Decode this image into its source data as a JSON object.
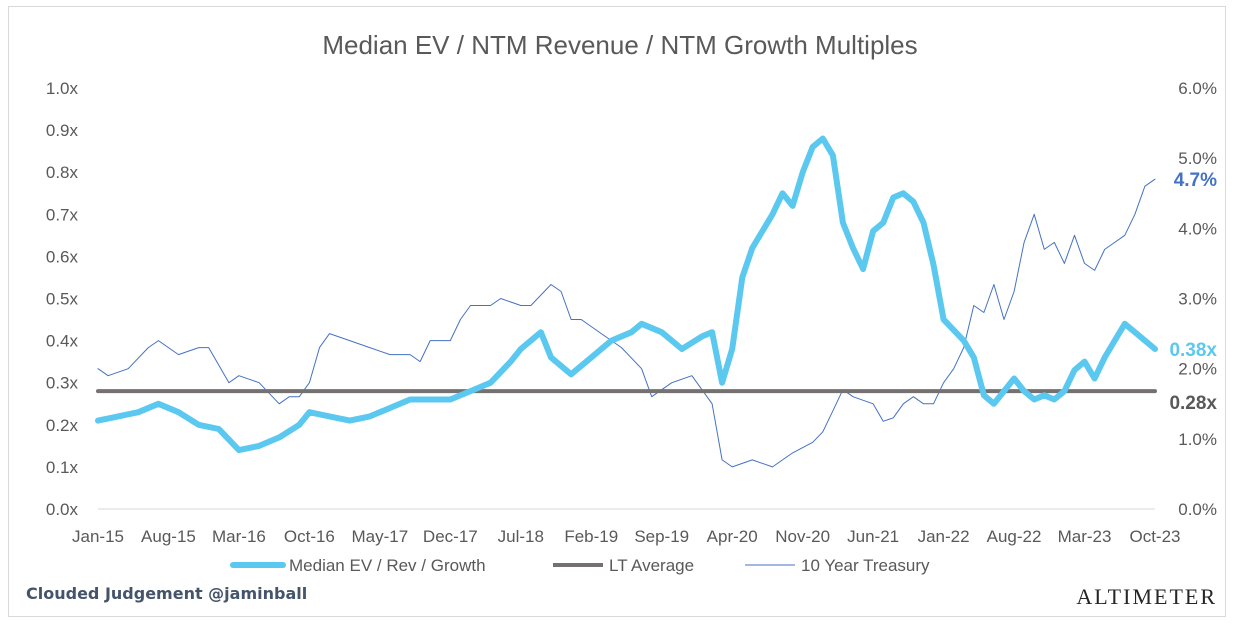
{
  "chart_data": {
    "type": "line",
    "title": "Median EV / NTM Revenue / NTM Growth Multiples",
    "x_tick_labels": [
      "Jan-15",
      "Aug-15",
      "Mar-16",
      "Oct-16",
      "May-17",
      "Dec-17",
      "Jul-18",
      "Feb-19",
      "Sep-19",
      "Apr-20",
      "Nov-20",
      "Jun-21",
      "Jan-22",
      "Aug-22",
      "Mar-23",
      "Oct-23"
    ],
    "y_left": {
      "ticks": [
        "0.0x",
        "0.1x",
        "0.2x",
        "0.3x",
        "0.4x",
        "0.5x",
        "0.6x",
        "0.7x",
        "0.8x",
        "0.9x",
        "1.0x"
      ],
      "range": [
        0,
        1.0
      ]
    },
    "y_right": {
      "ticks": [
        "0.0%",
        "1.0%",
        "2.0%",
        "3.0%",
        "4.0%",
        "5.0%",
        "6.0%"
      ],
      "range": [
        0,
        6.0
      ]
    },
    "grid": false,
    "legend_position": "bottom",
    "series": [
      {
        "name": "Median EV / Rev / Growth",
        "axis": "left",
        "color": "#5bc8f0",
        "end_label": "0.38x",
        "points": [
          [
            "Jan-15",
            0.21
          ],
          [
            "Mar-15",
            0.22
          ],
          [
            "May-15",
            0.23
          ],
          [
            "Jul-15",
            0.25
          ],
          [
            "Sep-15",
            0.23
          ],
          [
            "Nov-15",
            0.2
          ],
          [
            "Jan-16",
            0.19
          ],
          [
            "Mar-16",
            0.14
          ],
          [
            "May-16",
            0.15
          ],
          [
            "Jul-16",
            0.17
          ],
          [
            "Sep-16",
            0.2
          ],
          [
            "Oct-16",
            0.23
          ],
          [
            "Dec-16",
            0.22
          ],
          [
            "Feb-17",
            0.21
          ],
          [
            "Apr-17",
            0.22
          ],
          [
            "Jun-17",
            0.24
          ],
          [
            "Aug-17",
            0.26
          ],
          [
            "Oct-17",
            0.26
          ],
          [
            "Dec-17",
            0.26
          ],
          [
            "Feb-18",
            0.28
          ],
          [
            "Apr-18",
            0.3
          ],
          [
            "Jun-18",
            0.35
          ],
          [
            "Jul-18",
            0.38
          ],
          [
            "Aug-18",
            0.4
          ],
          [
            "Sep-18",
            0.42
          ],
          [
            "Oct-18",
            0.36
          ],
          [
            "Dec-18",
            0.32
          ],
          [
            "Feb-19",
            0.36
          ],
          [
            "Apr-19",
            0.4
          ],
          [
            "Jun-19",
            0.42
          ],
          [
            "Jul-19",
            0.44
          ],
          [
            "Sep-19",
            0.42
          ],
          [
            "Nov-19",
            0.38
          ],
          [
            "Jan-20",
            0.41
          ],
          [
            "Feb-20",
            0.42
          ],
          [
            "Mar-20",
            0.3
          ],
          [
            "Apr-20",
            0.38
          ],
          [
            "May-20",
            0.55
          ],
          [
            "Jun-20",
            0.62
          ],
          [
            "Aug-20",
            0.7
          ],
          [
            "Sep-20",
            0.75
          ],
          [
            "Oct-20",
            0.72
          ],
          [
            "Nov-20",
            0.8
          ],
          [
            "Dec-20",
            0.86
          ],
          [
            "Jan-21",
            0.88
          ],
          [
            "Feb-21",
            0.84
          ],
          [
            "Mar-21",
            0.68
          ],
          [
            "Apr-21",
            0.62
          ],
          [
            "May-21",
            0.57
          ],
          [
            "Jun-21",
            0.66
          ],
          [
            "Jul-21",
            0.68
          ],
          [
            "Aug-21",
            0.74
          ],
          [
            "Sep-21",
            0.75
          ],
          [
            "Oct-21",
            0.73
          ],
          [
            "Nov-21",
            0.68
          ],
          [
            "Dec-21",
            0.58
          ],
          [
            "Jan-22",
            0.45
          ],
          [
            "Mar-22",
            0.4
          ],
          [
            "Apr-22",
            0.36
          ],
          [
            "May-22",
            0.27
          ],
          [
            "Jun-22",
            0.25
          ],
          [
            "Jul-22",
            0.28
          ],
          [
            "Aug-22",
            0.31
          ],
          [
            "Sep-22",
            0.28
          ],
          [
            "Oct-22",
            0.26
          ],
          [
            "Nov-22",
            0.27
          ],
          [
            "Dec-22",
            0.26
          ],
          [
            "Jan-23",
            0.28
          ],
          [
            "Feb-23",
            0.33
          ],
          [
            "Mar-23",
            0.35
          ],
          [
            "Apr-23",
            0.31
          ],
          [
            "May-23",
            0.36
          ],
          [
            "Jun-23",
            0.4
          ],
          [
            "Jul-23",
            0.44
          ],
          [
            "Aug-23",
            0.42
          ],
          [
            "Sep-23",
            0.4
          ],
          [
            "Oct-23",
            0.38
          ]
        ]
      },
      {
        "name": "LT Average",
        "axis": "left",
        "color": "#767171",
        "end_label": "0.28x",
        "points": [
          [
            "Jan-15",
            0.28
          ],
          [
            "Oct-23",
            0.28
          ]
        ]
      },
      {
        "name": "10 Year Treasury",
        "axis": "right",
        "color": "#4472c4",
        "end_label": "4.7%",
        "points": [
          [
            "Jan-15",
            2.0
          ],
          [
            "Feb-15",
            1.9
          ],
          [
            "Apr-15",
            2.0
          ],
          [
            "Jun-15",
            2.3
          ],
          [
            "Jul-15",
            2.4
          ],
          [
            "Sep-15",
            2.2
          ],
          [
            "Nov-15",
            2.3
          ],
          [
            "Dec-15",
            2.3
          ],
          [
            "Feb-16",
            1.8
          ],
          [
            "Mar-16",
            1.9
          ],
          [
            "May-16",
            1.8
          ],
          [
            "Jul-16",
            1.5
          ],
          [
            "Aug-16",
            1.6
          ],
          [
            "Sep-16",
            1.6
          ],
          [
            "Oct-16",
            1.8
          ],
          [
            "Nov-16",
            2.3
          ],
          [
            "Dec-16",
            2.5
          ],
          [
            "Feb-17",
            2.4
          ],
          [
            "Apr-17",
            2.3
          ],
          [
            "Jun-17",
            2.2
          ],
          [
            "Aug-17",
            2.2
          ],
          [
            "Sep-17",
            2.1
          ],
          [
            "Oct-17",
            2.4
          ],
          [
            "Dec-17",
            2.4
          ],
          [
            "Jan-18",
            2.7
          ],
          [
            "Feb-18",
            2.9
          ],
          [
            "Apr-18",
            2.9
          ],
          [
            "May-18",
            3.0
          ],
          [
            "Jul-18",
            2.9
          ],
          [
            "Aug-18",
            2.9
          ],
          [
            "Oct-18",
            3.2
          ],
          [
            "Nov-18",
            3.1
          ],
          [
            "Dec-18",
            2.7
          ],
          [
            "Jan-19",
            2.7
          ],
          [
            "Mar-19",
            2.5
          ],
          [
            "May-19",
            2.3
          ],
          [
            "Jul-19",
            2.0
          ],
          [
            "Aug-19",
            1.6
          ],
          [
            "Sep-19",
            1.7
          ],
          [
            "Oct-19",
            1.8
          ],
          [
            "Dec-19",
            1.9
          ],
          [
            "Jan-20",
            1.7
          ],
          [
            "Feb-20",
            1.5
          ],
          [
            "Mar-20",
            0.7
          ],
          [
            "Apr-20",
            0.6
          ],
          [
            "Jun-20",
            0.7
          ],
          [
            "Aug-20",
            0.6
          ],
          [
            "Oct-20",
            0.8
          ],
          [
            "Dec-20",
            0.95
          ],
          [
            "Jan-21",
            1.1
          ],
          [
            "Feb-21",
            1.4
          ],
          [
            "Mar-21",
            1.7
          ],
          [
            "Apr-21",
            1.6
          ],
          [
            "Jun-21",
            1.5
          ],
          [
            "Jul-21",
            1.25
          ],
          [
            "Aug-21",
            1.3
          ],
          [
            "Sep-21",
            1.5
          ],
          [
            "Oct-21",
            1.6
          ],
          [
            "Nov-21",
            1.5
          ],
          [
            "Dec-21",
            1.5
          ],
          [
            "Jan-22",
            1.8
          ],
          [
            "Feb-22",
            2.0
          ],
          [
            "Mar-22",
            2.3
          ],
          [
            "Apr-22",
            2.9
          ],
          [
            "May-22",
            2.8
          ],
          [
            "Jun-22",
            3.2
          ],
          [
            "Jul-22",
            2.7
          ],
          [
            "Aug-22",
            3.1
          ],
          [
            "Sep-22",
            3.8
          ],
          [
            "Oct-22",
            4.2
          ],
          [
            "Nov-22",
            3.7
          ],
          [
            "Dec-22",
            3.8
          ],
          [
            "Jan-23",
            3.5
          ],
          [
            "Feb-23",
            3.9
          ],
          [
            "Mar-23",
            3.5
          ],
          [
            "Apr-23",
            3.4
          ],
          [
            "May-23",
            3.7
          ],
          [
            "Jun-23",
            3.8
          ],
          [
            "Jul-23",
            3.9
          ],
          [
            "Aug-23",
            4.2
          ],
          [
            "Sep-23",
            4.6
          ],
          [
            "Oct-23",
            4.7
          ]
        ]
      }
    ]
  },
  "footer": {
    "attribution": "Clouded Judgement @jaminball",
    "brand": "ALTIMETER"
  }
}
